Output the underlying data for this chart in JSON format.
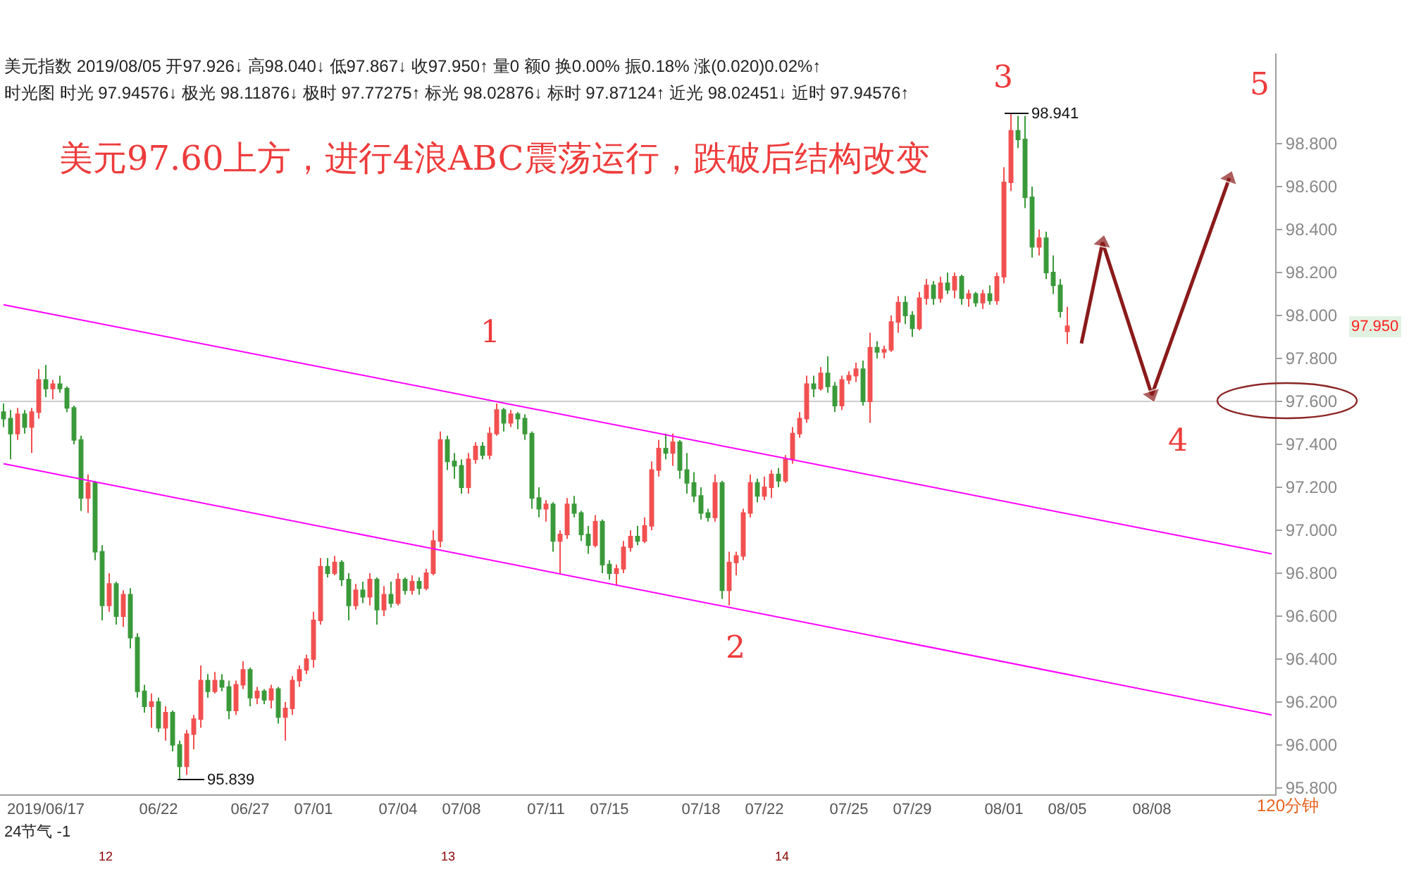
{
  "chart_data": {
    "type": "candlestick",
    "title": "美元97.60上方，进行4浪ABC震荡运行，跌破后结构改变",
    "xlabel": "120分钟",
    "categories": [
      null,
      null,
      null,
      null,
      null,
      null,
      "2019/06/17",
      null,
      null,
      null,
      null,
      null,
      null,
      null,
      null,
      null,
      null,
      null,
      null,
      null,
      null,
      null,
      "06/22",
      null,
      null,
      null,
      null,
      null,
      null,
      null,
      null,
      null,
      null,
      null,
      null,
      "06/27",
      null,
      null,
      null,
      null,
      null,
      null,
      null,
      null,
      "07/01",
      null,
      null,
      null,
      null,
      null,
      null,
      null,
      null,
      null,
      null,
      null,
      "07/04",
      null,
      null,
      null,
      null,
      null,
      null,
      null,
      null,
      "07/08",
      null,
      null,
      null,
      null,
      null,
      null,
      null,
      null,
      null,
      null,
      null,
      "07/11",
      null,
      null,
      null,
      null,
      null,
      null,
      null,
      null,
      "07/15",
      null,
      null,
      null,
      null,
      null,
      null,
      null,
      null,
      null,
      null,
      null,
      null,
      "07/18",
      null,
      null,
      null,
      null,
      null,
      null,
      null,
      null,
      "07/22",
      null,
      null,
      null,
      null,
      null,
      null,
      null,
      null,
      null,
      null,
      null,
      "07/25",
      null,
      null,
      null,
      null,
      null,
      null,
      null,
      null,
      "07/29",
      null,
      null,
      null,
      null,
      null,
      null,
      null,
      null,
      null,
      null,
      null,
      null,
      "08/01",
      null,
      null,
      null,
      null,
      null,
      null,
      null,
      null,
      "08/05",
      null,
      null,
      null,
      null,
      null,
      null,
      null,
      null,
      null,
      null,
      null,
      "08/08",
      null,
      null,
      null,
      null,
      null,
      null,
      null,
      null,
      null,
      null,
      null,
      null,
      null,
      null,
      null,
      null,
      null
    ],
    "ylim": [
      95.77,
      99.22
    ],
    "yticks": [
      {
        "value": 95.8,
        "label": "95.800"
      },
      {
        "value": 96.0,
        "label": "96.000"
      },
      {
        "value": 96.2,
        "label": "96.200"
      },
      {
        "value": 96.4,
        "label": "96.400"
      },
      {
        "value": 96.6,
        "label": "96.600"
      },
      {
        "value": 96.8,
        "label": "96.800"
      },
      {
        "value": 97.0,
        "label": "97.000"
      },
      {
        "value": 97.2,
        "label": "97.200"
      },
      {
        "value": 97.4,
        "label": "97.400"
      },
      {
        "value": 97.6,
        "label": "97.600"
      },
      {
        "value": 97.8,
        "label": "97.800"
      },
      {
        "value": 98.0,
        "label": "98.000"
      },
      {
        "value": 98.2,
        "label": "98.200"
      },
      {
        "value": 98.4,
        "label": "98.400"
      },
      {
        "value": 98.6,
        "label": "98.600"
      },
      {
        "value": 98.8,
        "label": "98.800"
      }
    ],
    "ref_lines": [
      {
        "axis": "y",
        "value": 97.6,
        "color": "#cccccc"
      }
    ],
    "series": [
      {
        "type": "line",
        "color": "#ff00ff",
        "values": [
          98.05,
          null,
          null,
          null,
          null,
          null,
          null,
          null,
          null,
          null,
          null,
          null,
          null,
          null,
          null,
          null,
          null,
          null,
          null,
          null,
          null,
          null,
          null,
          null,
          null,
          null,
          null,
          null,
          null,
          null,
          null,
          null,
          null,
          null,
          null,
          null,
          null,
          null,
          null,
          null,
          null,
          null,
          null,
          null,
          null,
          null,
          null,
          null,
          null,
          null,
          null,
          null,
          null,
          null,
          null,
          null,
          null,
          null,
          null,
          null,
          null,
          null,
          null,
          null,
          null,
          null,
          null,
          null,
          null,
          null,
          null,
          null,
          null,
          null,
          null,
          null,
          null,
          null,
          null,
          null,
          null,
          null,
          null,
          null,
          null,
          null,
          null,
          null,
          null,
          null,
          null,
          null,
          null,
          null,
          null,
          null,
          null,
          null,
          null,
          null,
          null,
          null,
          null,
          null,
          null,
          null,
          null,
          null,
          null,
          null,
          null,
          null,
          null,
          null,
          null,
          null,
          null,
          null,
          null,
          null,
          null,
          null,
          null,
          null,
          null,
          null,
          null,
          null,
          null,
          null,
          null,
          null,
          null,
          null,
          null,
          null,
          null,
          null,
          null,
          null,
          null,
          null,
          null,
          null,
          null,
          null,
          null,
          null,
          null,
          null,
          null,
          null,
          null,
          null,
          null,
          null,
          null,
          null,
          null,
          null,
          null,
          null,
          null,
          null,
          null,
          null,
          null,
          null,
          null,
          null,
          null,
          null,
          null,
          null,
          null,
          null,
          null,
          null,
          null,
          null,
          96.89
        ]
      },
      {
        "type": "line",
        "color": "#ff00ff",
        "values": [
          97.31,
          null,
          null,
          null,
          null,
          null,
          null,
          null,
          null,
          null,
          null,
          null,
          null,
          null,
          null,
          null,
          null,
          null,
          null,
          null,
          null,
          null,
          null,
          null,
          null,
          null,
          null,
          null,
          null,
          null,
          null,
          null,
          null,
          null,
          null,
          null,
          null,
          null,
          null,
          null,
          null,
          null,
          null,
          null,
          null,
          null,
          null,
          null,
          null,
          null,
          null,
          null,
          null,
          null,
          null,
          null,
          null,
          null,
          null,
          null,
          null,
          null,
          null,
          null,
          null,
          null,
          null,
          null,
          null,
          null,
          null,
          null,
          null,
          null,
          null,
          null,
          null,
          null,
          null,
          null,
          null,
          null,
          null,
          null,
          null,
          null,
          null,
          null,
          null,
          null,
          null,
          null,
          null,
          null,
          null,
          null,
          null,
          null,
          null,
          null,
          null,
          null,
          null,
          null,
          null,
          null,
          null,
          null,
          null,
          null,
          null,
          null,
          null,
          null,
          null,
          null,
          null,
          null,
          null,
          null,
          null,
          null,
          null,
          null,
          null,
          null,
          null,
          null,
          null,
          null,
          null,
          null,
          null,
          null,
          null,
          null,
          null,
          null,
          null,
          null,
          null,
          null,
          null,
          null,
          null,
          null,
          null,
          null,
          null,
          null,
          null,
          null,
          null,
          null,
          null,
          null,
          null,
          null,
          null,
          null,
          null,
          null,
          null,
          null,
          null,
          null,
          null,
          null,
          null,
          null,
          null,
          null,
          null,
          null,
          null,
          null,
          null,
          null,
          null,
          null,
          96.14
        ]
      },
      {
        "type": "line",
        "color": "#8b1a1a",
        "marker": "triangle",
        "values": [
          null,
          null,
          null,
          null,
          null,
          null,
          null,
          null,
          null,
          null,
          null,
          null,
          null,
          null,
          null,
          null,
          null,
          null,
          null,
          null,
          null,
          null,
          null,
          null,
          null,
          null,
          null,
          null,
          null,
          null,
          null,
          null,
          null,
          null,
          null,
          null,
          null,
          null,
          null,
          null,
          null,
          null,
          null,
          null,
          null,
          null,
          null,
          null,
          null,
          null,
          null,
          null,
          null,
          null,
          null,
          null,
          null,
          null,
          null,
          null,
          null,
          null,
          null,
          null,
          null,
          null,
          null,
          null,
          null,
          null,
          null,
          null,
          null,
          null,
          null,
          null,
          null,
          null,
          null,
          null,
          null,
          null,
          null,
          null,
          null,
          null,
          null,
          null,
          null,
          null,
          null,
          null,
          null,
          null,
          null,
          null,
          null,
          null,
          null,
          null,
          null,
          null,
          null,
          null,
          null,
          null,
          null,
          null,
          null,
          null,
          null,
          null,
          null,
          null,
          null,
          null,
          null,
          null,
          null,
          null,
          null,
          null,
          null,
          null,
          null,
          null,
          null,
          null,
          null,
          null,
          null,
          null,
          null,
          null,
          null,
          null,
          null,
          null,
          null,
          null,
          null,
          null,
          null,
          null,
          null,
          null,
          null,
          null,
          null,
          null,
          null,
          null,
          null,
          97.87,
          null,
          null,
          98.34,
          null,
          null,
          null,
          null,
          null,
          null,
          97.63,
          null,
          null,
          null,
          null,
          null,
          null,
          null,
          null,
          null,
          null,
          98.64,
          null,
          null,
          null,
          null,
          null,
          null
        ]
      },
      {
        "ohlc": [
          [
            97.55,
            97.59,
            97.48,
            97.52
          ],
          [
            97.52,
            97.56,
            97.33,
            97.45
          ],
          [
            97.45,
            97.57,
            97.42,
            97.54
          ],
          [
            97.54,
            97.56,
            97.45,
            97.48
          ],
          [
            97.48,
            97.57,
            97.36,
            97.55
          ],
          [
            97.55,
            97.75,
            97.52,
            97.7
          ],
          [
            97.7,
            97.77,
            97.62,
            97.66
          ],
          [
            97.66,
            97.7,
            97.61,
            97.68
          ],
          [
            97.68,
            97.72,
            97.64,
            97.66
          ],
          [
            97.66,
            97.67,
            97.55,
            97.57
          ],
          [
            97.57,
            97.58,
            97.4,
            97.42
          ],
          [
            97.42,
            97.44,
            97.09,
            97.15
          ],
          [
            97.15,
            97.26,
            97.08,
            97.22
          ],
          [
            97.22,
            97.23,
            96.86,
            96.9
          ],
          [
            96.9,
            96.93,
            96.58,
            96.65
          ],
          [
            96.65,
            96.8,
            96.62,
            96.75
          ],
          [
            96.75,
            96.76,
            96.56,
            96.6
          ],
          [
            96.6,
            96.72,
            96.55,
            96.7
          ],
          [
            96.7,
            96.73,
            96.45,
            96.5
          ],
          [
            96.5,
            96.52,
            96.22,
            96.25
          ],
          [
            96.25,
            96.28,
            96.15,
            96.18
          ],
          [
            96.18,
            96.24,
            96.08,
            96.2
          ],
          [
            96.2,
            96.22,
            96.06,
            96.08
          ],
          [
            96.08,
            96.18,
            96.02,
            96.15
          ],
          [
            96.15,
            96.16,
            95.97,
            96.0
          ],
          [
            96.0,
            96.02,
            95.839,
            95.9
          ],
          [
            95.9,
            96.07,
            95.86,
            96.05
          ],
          [
            96.05,
            96.14,
            95.98,
            96.12
          ],
          [
            96.12,
            96.37,
            96.08,
            96.3
          ],
          [
            96.3,
            96.33,
            96.22,
            96.25
          ],
          [
            96.25,
            96.34,
            96.24,
            96.3
          ],
          [
            96.3,
            96.33,
            96.25,
            96.27
          ],
          [
            96.27,
            96.3,
            96.12,
            96.16
          ],
          [
            96.16,
            96.3,
            96.14,
            96.28
          ],
          [
            96.28,
            96.39,
            96.26,
            96.35
          ],
          [
            96.35,
            96.36,
            96.18,
            96.22
          ],
          [
            96.22,
            96.27,
            96.19,
            96.25
          ],
          [
            96.25,
            96.26,
            96.19,
            96.21
          ],
          [
            96.21,
            96.28,
            96.17,
            96.26
          ],
          [
            96.26,
            96.27,
            96.1,
            96.13
          ],
          [
            96.13,
            96.2,
            96.02,
            96.17
          ],
          [
            96.17,
            96.32,
            96.14,
            96.3
          ],
          [
            96.3,
            96.37,
            96.27,
            96.35
          ],
          [
            96.35,
            96.42,
            96.33,
            96.4
          ],
          [
            96.4,
            96.62,
            96.36,
            96.58
          ],
          [
            96.58,
            96.87,
            96.56,
            96.83
          ],
          [
            96.83,
            96.87,
            96.78,
            96.8
          ],
          [
            96.8,
            96.88,
            96.79,
            96.85
          ],
          [
            96.85,
            96.86,
            96.74,
            96.77
          ],
          [
            96.77,
            96.8,
            96.58,
            96.65
          ],
          [
            96.65,
            96.75,
            96.63,
            96.72
          ],
          [
            96.72,
            96.76,
            96.66,
            96.69
          ],
          [
            96.69,
            96.8,
            96.65,
            96.77
          ],
          [
            96.77,
            96.78,
            96.56,
            96.63
          ],
          [
            96.63,
            96.74,
            96.6,
            96.7
          ],
          [
            96.7,
            96.76,
            96.64,
            96.66
          ],
          [
            96.66,
            96.8,
            96.65,
            96.77
          ],
          [
            96.77,
            96.78,
            96.7,
            96.72
          ],
          [
            96.72,
            96.79,
            96.7,
            96.76
          ],
          [
            96.76,
            96.78,
            96.7,
            96.73
          ],
          [
            96.73,
            96.82,
            96.72,
            96.8
          ],
          [
            96.8,
            97.0,
            96.79,
            96.95
          ],
          [
            96.95,
            97.46,
            96.92,
            97.42
          ],
          [
            97.42,
            97.44,
            97.28,
            97.32
          ],
          [
            97.32,
            97.36,
            97.24,
            97.3
          ],
          [
            97.3,
            97.33,
            97.17,
            97.2
          ],
          [
            97.2,
            97.36,
            97.17,
            97.33
          ],
          [
            97.33,
            97.41,
            97.31,
            97.39
          ],
          [
            97.39,
            97.41,
            97.33,
            97.35
          ],
          [
            97.35,
            97.48,
            97.33,
            97.45
          ],
          [
            97.45,
            97.59,
            97.44,
            97.56
          ],
          [
            97.56,
            97.57,
            97.46,
            97.5
          ],
          [
            97.5,
            97.56,
            97.48,
            97.54
          ],
          [
            97.54,
            97.55,
            97.47,
            97.52
          ],
          [
            97.52,
            97.54,
            97.42,
            97.45
          ],
          [
            97.45,
            97.46,
            97.1,
            97.15
          ],
          [
            97.15,
            97.2,
            97.06,
            97.1
          ],
          [
            97.1,
            97.14,
            97.04,
            97.12
          ],
          [
            97.12,
            97.13,
            96.9,
            96.95
          ],
          [
            96.95,
            97.0,
            96.8,
            96.98
          ],
          [
            96.98,
            97.15,
            96.96,
            97.12
          ],
          [
            97.12,
            97.16,
            97.06,
            97.08
          ],
          [
            97.08,
            97.09,
            96.95,
            96.98
          ],
          [
            96.98,
            97.02,
            96.89,
            96.93
          ],
          [
            96.93,
            97.07,
            96.92,
            97.04
          ],
          [
            97.04,
            97.05,
            96.8,
            96.84
          ],
          [
            96.84,
            96.86,
            96.77,
            96.8
          ],
          [
            96.8,
            96.84,
            96.74,
            96.82
          ],
          [
            96.82,
            96.95,
            96.8,
            96.92
          ],
          [
            96.92,
            97.0,
            96.9,
            96.97
          ],
          [
            96.97,
            97.02,
            96.93,
            96.95
          ],
          [
            96.95,
            97.06,
            96.94,
            97.02
          ],
          [
            97.02,
            97.32,
            97.0,
            97.28
          ],
          [
            97.28,
            97.42,
            97.25,
            97.38
          ],
          [
            97.38,
            97.45,
            97.33,
            97.36
          ],
          [
            97.36,
            97.45,
            97.3,
            97.41
          ],
          [
            97.41,
            97.42,
            97.24,
            97.28
          ],
          [
            97.28,
            97.36,
            97.17,
            97.22
          ],
          [
            97.22,
            97.27,
            97.13,
            97.16
          ],
          [
            97.16,
            97.2,
            97.05,
            97.08
          ],
          [
            97.08,
            97.1,
            97.04,
            97.06
          ],
          [
            97.06,
            97.26,
            97.04,
            97.22
          ],
          [
            97.22,
            97.23,
            96.68,
            96.72
          ],
          [
            96.72,
            96.9,
            96.65,
            96.85
          ],
          [
            96.85,
            96.9,
            96.79,
            96.88
          ],
          [
            96.88,
            97.1,
            96.86,
            97.08
          ],
          [
            97.08,
            97.26,
            97.06,
            97.22
          ],
          [
            97.22,
            97.24,
            97.13,
            97.16
          ],
          [
            97.16,
            97.25,
            97.14,
            97.2
          ],
          [
            97.2,
            97.28,
            97.15,
            97.26
          ],
          [
            97.26,
            97.29,
            97.2,
            97.23
          ],
          [
            97.23,
            97.35,
            97.22,
            97.33
          ],
          [
            97.33,
            97.48,
            97.31,
            97.45
          ],
          [
            97.45,
            97.55,
            97.43,
            97.52
          ],
          [
            97.52,
            97.72,
            97.5,
            97.68
          ],
          [
            97.68,
            97.72,
            97.62,
            97.66
          ],
          [
            97.66,
            97.76,
            97.65,
            97.73
          ],
          [
            97.73,
            97.81,
            97.64,
            97.67
          ],
          [
            97.67,
            97.69,
            97.55,
            97.58
          ],
          [
            97.58,
            97.72,
            97.56,
            97.7
          ],
          [
            97.7,
            97.74,
            97.68,
            97.72
          ],
          [
            97.72,
            97.78,
            97.69,
            97.75
          ],
          [
            97.75,
            97.79,
            97.58,
            97.6
          ],
          [
            97.6,
            97.92,
            97.5,
            97.85
          ],
          [
            97.85,
            97.88,
            97.8,
            97.83
          ],
          [
            97.83,
            97.86,
            97.8,
            97.84
          ],
          [
            97.84,
            98.0,
            97.83,
            97.97
          ],
          [
            97.97,
            98.09,
            97.92,
            98.06
          ],
          [
            98.06,
            98.09,
            97.96,
            98.0
          ],
          [
            98.0,
            98.02,
            97.9,
            97.94
          ],
          [
            97.94,
            98.11,
            97.93,
            98.08
          ],
          [
            98.08,
            98.17,
            98.05,
            98.14
          ],
          [
            98.14,
            98.16,
            98.05,
            98.08
          ],
          [
            98.08,
            98.18,
            98.06,
            98.15
          ],
          [
            98.15,
            98.2,
            98.1,
            98.12
          ],
          [
            98.12,
            98.2,
            98.08,
            98.18
          ],
          [
            98.18,
            98.19,
            98.05,
            98.08
          ],
          [
            98.08,
            98.12,
            98.04,
            98.1
          ],
          [
            98.1,
            98.11,
            98.04,
            98.06
          ],
          [
            98.06,
            98.12,
            98.03,
            98.1
          ],
          [
            98.1,
            98.14,
            98.05,
            98.07
          ],
          [
            98.07,
            98.2,
            98.05,
            98.18
          ],
          [
            98.18,
            98.69,
            98.15,
            98.62
          ],
          [
            98.62,
            98.941,
            98.58,
            98.86
          ],
          [
            98.86,
            98.93,
            98.78,
            98.82
          ],
          [
            98.82,
            98.93,
            98.5,
            98.55
          ],
          [
            98.55,
            98.6,
            98.27,
            98.32
          ],
          [
            98.32,
            98.4,
            98.28,
            98.36
          ],
          [
            98.36,
            98.39,
            98.17,
            98.2
          ],
          [
            98.2,
            98.28,
            98.1,
            98.14
          ],
          [
            98.14,
            98.17,
            97.99,
            98.02
          ],
          [
            97.926,
            98.04,
            97.867,
            97.95
          ],
          null,
          null,
          null,
          null,
          null,
          null,
          null,
          null,
          null,
          null,
          null,
          null,
          null,
          null,
          null,
          null,
          null,
          null,
          null,
          null,
          null,
          null,
          null,
          null,
          null,
          null,
          null,
          null,
          null
        ],
        "colors": [
          "#3a9a3a",
          "#3a9a3a",
          "#f25050",
          "#3a9a3a",
          "#f25050",
          "#f25050",
          "#3a9a3a",
          "#f25050",
          "#3a9a3a",
          "#3a9a3a",
          "#3a9a3a",
          "#3a9a3a",
          "#f25050",
          "#3a9a3a",
          "#3a9a3a",
          "#f25050",
          "#3a9a3a",
          "#f25050",
          "#3a9a3a",
          "#3a9a3a",
          "#3a9a3a",
          "#f25050",
          "#3a9a3a",
          "#f25050",
          "#3a9a3a",
          "#3a9a3a",
          "#f25050",
          "#f25050",
          "#f25050",
          "#3a9a3a",
          "#f25050",
          "#3a9a3a",
          "#3a9a3a",
          "#f25050",
          "#f25050",
          "#3a9a3a",
          "#f25050",
          "#3a9a3a",
          "#f25050",
          "#3a9a3a",
          "#f25050",
          "#f25050",
          "#f25050",
          "#f25050",
          "#f25050",
          "#f25050",
          "#3a9a3a",
          "#f25050",
          "#3a9a3a",
          "#3a9a3a",
          "#f25050",
          "#3a9a3a",
          "#f25050",
          "#3a9a3a",
          "#f25050",
          "#3a9a3a",
          "#f25050",
          "#3a9a3a",
          "#f25050",
          "#3a9a3a",
          "#f25050",
          "#f25050",
          "#f25050",
          "#3a9a3a",
          "#3a9a3a",
          "#3a9a3a",
          "#f25050",
          "#f25050",
          "#3a9a3a",
          "#f25050",
          "#f25050",
          "#3a9a3a",
          "#f25050",
          "#3a9a3a",
          "#3a9a3a",
          "#3a9a3a",
          "#3a9a3a",
          "#f25050",
          "#3a9a3a",
          "#f25050",
          "#f25050",
          "#3a9a3a",
          "#3a9a3a",
          "#3a9a3a",
          "#f25050",
          "#3a9a3a",
          "#3a9a3a",
          "#f25050",
          "#f25050",
          "#f25050",
          "#3a9a3a",
          "#f25050",
          "#f25050",
          "#f25050",
          "#3a9a3a",
          "#f25050",
          "#3a9a3a",
          "#3a9a3a",
          "#3a9a3a",
          "#3a9a3a",
          "#3a9a3a",
          "#f25050",
          "#3a9a3a",
          "#f25050",
          "#f25050",
          "#f25050",
          "#f25050",
          "#3a9a3a",
          "#f25050",
          "#f25050",
          "#3a9a3a",
          "#f25050",
          "#f25050",
          "#f25050",
          "#f25050",
          "#3a9a3a",
          "#f25050",
          "#3a9a3a",
          "#3a9a3a",
          "#f25050",
          "#f25050",
          "#f25050",
          "#3a9a3a",
          "#f25050",
          "#3a9a3a",
          "#f25050",
          "#f25050",
          "#f25050",
          "#3a9a3a",
          "#3a9a3a",
          "#f25050",
          "#f25050",
          "#3a9a3a",
          "#f25050",
          "#3a9a3a",
          "#f25050",
          "#3a9a3a",
          "#f25050",
          "#3a9a3a",
          "#f25050",
          "#3a9a3a",
          "#f25050",
          "#f25050",
          "#f25050",
          "#3a9a3a",
          "#3a9a3a",
          "#3a9a3a",
          "#f25050",
          "#3a9a3a",
          "#3a9a3a",
          "#3a9a3a",
          "#f25050",
          null,
          null,
          null,
          null,
          null,
          null,
          null,
          null,
          null,
          null,
          null,
          null,
          null,
          null,
          null,
          null,
          null,
          null,
          null,
          null,
          null,
          null,
          null,
          null,
          null,
          null,
          null,
          null,
          null
        ]
      }
    ],
    "annotations": [
      "美元指数 2019/08/05 开97.926↓ 高98.040↓ 低97.867↓ 收97.950↑ 量0 额0 换0.00% 振0.18% 涨(0.020)0.02%↑",
      "时光图 时光 97.94576↓ 极光 98.11876↓ 极时 97.77275↑ 标光 98.02876↓ 标时 97.87124↑ 近光 98.02451↓ 近时 97.94576↑",
      "1",
      "2",
      "3",
      "4",
      "5",
      "98.941",
      "95.839",
      "97.950",
      "24节气 -1",
      "12",
      "13",
      "14"
    ]
  }
}
